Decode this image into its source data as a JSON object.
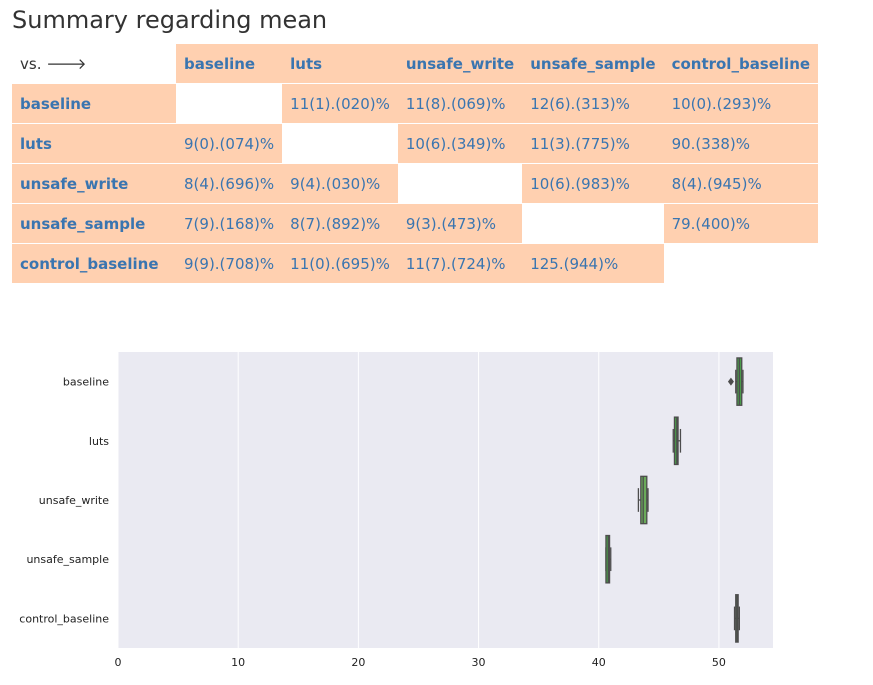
{
  "page": {
    "title": "Summary regarding mean"
  },
  "table": {
    "corner": "vs. 🡒",
    "columns": [
      "baseline",
      "luts",
      "unsafe_write",
      "unsafe_sample",
      "control_baseline"
    ],
    "rows": [
      {
        "label": "baseline",
        "cells": [
          "",
          "11(1).(020)%",
          "11(8).(069)%",
          "12(6).(313)%",
          "10(0).(293)%"
        ]
      },
      {
        "label": "luts",
        "cells": [
          "9(0).(074)%",
          "",
          "10(6).(349)%",
          "11(3).(775)%",
          "90.(338)%"
        ]
      },
      {
        "label": "unsafe_write",
        "cells": [
          "8(4).(696)%",
          "9(4).(030)%",
          "",
          "10(6).(983)%",
          "8(4).(945)%"
        ]
      },
      {
        "label": "unsafe_sample",
        "cells": [
          "7(9).(168)%",
          "8(7).(892)%",
          "9(3).(473)%",
          "",
          "79.(400)%"
        ]
      },
      {
        "label": "control_baseline",
        "cells": [
          "9(9).(708)%",
          "11(0).(695)%",
          "11(7).(724)%",
          "125.(944)%",
          null
        ]
      }
    ]
  },
  "chart_data": {
    "type": "box",
    "orientation": "horizontal",
    "categories": [
      "baseline",
      "luts",
      "unsafe_write",
      "unsafe_sample",
      "control_baseline"
    ],
    "xlim": [
      0,
      54.5
    ],
    "xticks": [
      0,
      10,
      20,
      30,
      40,
      50
    ],
    "grid": true,
    "boxes": [
      {
        "category": "baseline",
        "whisker_low": 51.4,
        "q1": 51.5,
        "median": 51.7,
        "q3": 51.9,
        "whisker_high": 52.0,
        "outliers": [
          51.0
        ],
        "color": "#4a9a4a"
      },
      {
        "category": "luts",
        "whisker_low": 46.2,
        "q1": 46.3,
        "median": 46.5,
        "q3": 46.6,
        "whisker_high": 46.8,
        "outliers": [],
        "color": "#4a9a4a"
      },
      {
        "category": "unsafe_write",
        "whisker_low": 43.3,
        "q1": 43.5,
        "median": 43.7,
        "q3": 44.0,
        "whisker_high": 44.1,
        "outliers": [],
        "color": "#6aaa5a"
      },
      {
        "category": "unsafe_sample",
        "whisker_low": 40.6,
        "q1": 40.6,
        "median": 40.8,
        "q3": 40.9,
        "whisker_high": 41.0,
        "outliers": [],
        "color": "#4a9a4a"
      },
      {
        "category": "control_baseline",
        "whisker_low": 51.3,
        "q1": 51.4,
        "median": 51.5,
        "q3": 51.6,
        "whisker_high": 51.7,
        "outliers": [],
        "color": "#4a9a4a"
      }
    ]
  }
}
